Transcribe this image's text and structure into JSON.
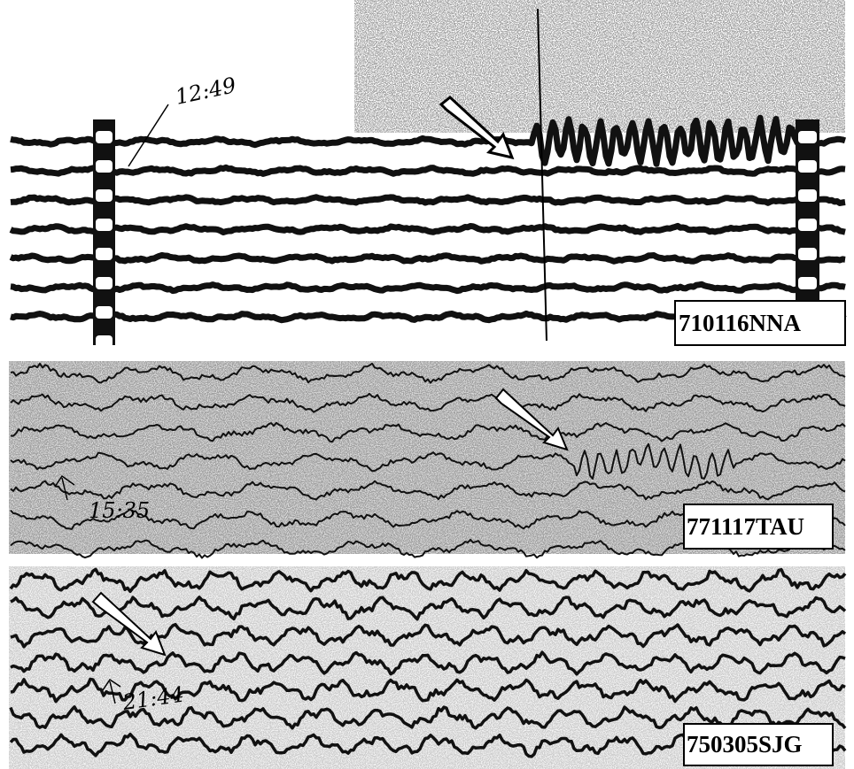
{
  "panels": [
    {
      "label": "710116NNA",
      "time_note": "12:49"
    },
    {
      "label": "771117TAU",
      "time_note": "15:35"
    },
    {
      "label": "750305SJG",
      "time_note": "21:44"
    }
  ]
}
